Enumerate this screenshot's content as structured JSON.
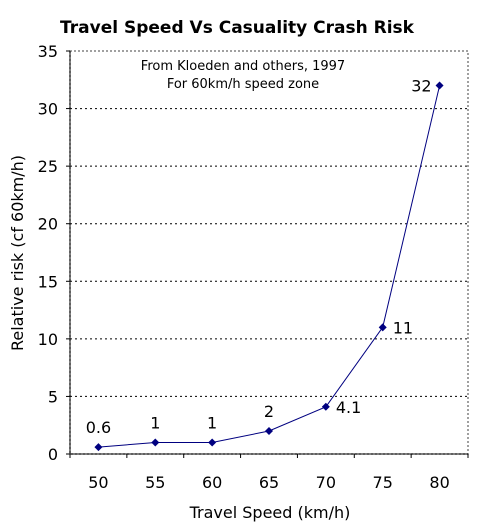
{
  "chart_data": {
    "type": "line",
    "title": "Travel Speed Vs Casuality Crash Risk",
    "annotation_lines": [
      "From Kloeden and others, 1997",
      "For 60km/h speed zone"
    ],
    "xlabel": "Travel Speed (km/h)",
    "ylabel": "Relative risk (cf 60km/h)",
    "categories": [
      "50",
      "55",
      "60",
      "65",
      "70",
      "75",
      "80"
    ],
    "series": [
      {
        "values": [
          0.6,
          1,
          1,
          2,
          4.1,
          11,
          32
        ],
        "color": "#000080"
      }
    ],
    "data_labels": [
      "0.6",
      "1",
      "1",
      "2",
      "4.1",
      "11",
      "32"
    ],
    "ylim": [
      0,
      35
    ],
    "yticks": [
      "0",
      "5",
      "10",
      "15",
      "20",
      "25",
      "30",
      "35"
    ],
    "grid": "horizontal dotted",
    "legend": "none"
  }
}
